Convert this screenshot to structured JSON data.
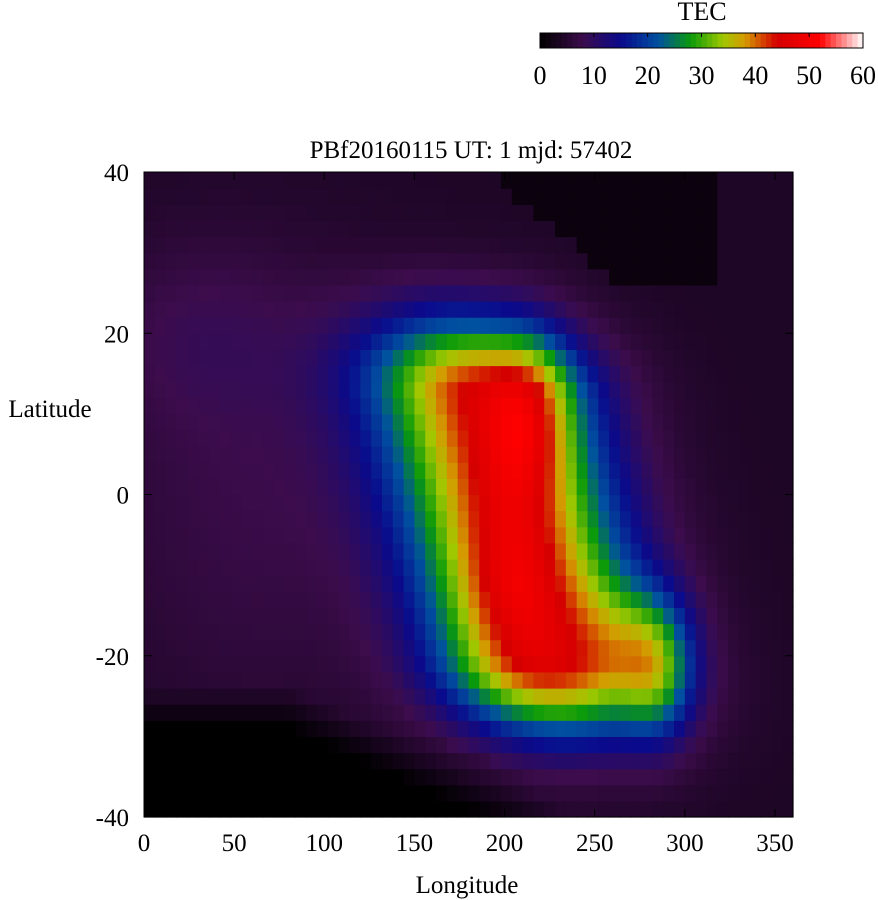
{
  "chart_data": {
    "type": "heatmap",
    "title": "PBf20160115  UT: 1  mjd: 57402",
    "xlabel": "Longitude",
    "ylabel": "Latitude",
    "xlim": [
      0,
      360
    ],
    "ylim": [
      -40,
      40
    ],
    "x_ticks": [
      "0",
      "50",
      "100",
      "150",
      "200",
      "250",
      "300",
      "350"
    ],
    "y_ticks": [
      "40",
      "20",
      "0",
      "-20",
      "-40"
    ],
    "colorbar": {
      "label": "TEC",
      "range": [
        0,
        60
      ],
      "ticks": [
        "0",
        "10",
        "20",
        "30",
        "40",
        "50",
        "60"
      ]
    },
    "grid_resolution": {
      "lon_step": 6,
      "lat_step": 2
    },
    "peaks": [
      {
        "lon": 215,
        "lat": 10,
        "tec": 57
      },
      {
        "lon": 200,
        "lat": -12,
        "tec": 49
      },
      {
        "lon": 285,
        "lat": -22,
        "tec": 45
      }
    ],
    "colormap_stops": [
      {
        "v": 0,
        "color": "#000000"
      },
      {
        "v": 8,
        "color": "#3c0c4c"
      },
      {
        "v": 15,
        "color": "#0a0a8c"
      },
      {
        "v": 22,
        "color": "#0050a0"
      },
      {
        "v": 28,
        "color": "#0a9a0a"
      },
      {
        "v": 34,
        "color": "#a0c800"
      },
      {
        "v": 38,
        "color": "#d49a00"
      },
      {
        "v": 44,
        "color": "#d40000"
      },
      {
        "v": 52,
        "color": "#ff0000"
      },
      {
        "v": 60,
        "color": "#ffffff"
      }
    ]
  }
}
